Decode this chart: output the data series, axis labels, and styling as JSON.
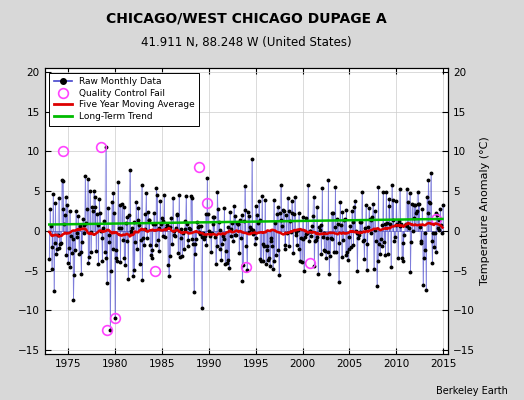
{
  "title": "CHICAGO/WEST CHICAGO DUPAGE A",
  "subtitle": "41.911 N, 88.248 W (United States)",
  "ylabel": "Temperature Anomaly (°C)",
  "attribution": "Berkeley Earth",
  "xlim": [
    1972.5,
    2015.5
  ],
  "ylim": [
    -15.5,
    20.5
  ],
  "yticks": [
    -15,
    -10,
    -5,
    0,
    5,
    10,
    15,
    20
  ],
  "xticks": [
    1975,
    1980,
    1985,
    1990,
    1995,
    2000,
    2005,
    2010,
    2015
  ],
  "bg_color": "#d8d8d8",
  "plot_bg_color": "#ffffff",
  "line_color": "#4444cc",
  "marker_color": "#000000",
  "moving_avg_color": "#dd0000",
  "trend_color": "#00bb00",
  "qc_fail_color": "#ff44ff",
  "seed": 123,
  "start_year": 1973.0,
  "n_months": 504,
  "lollipop_alpha": 0.5,
  "lollipop_lw": 0.7
}
